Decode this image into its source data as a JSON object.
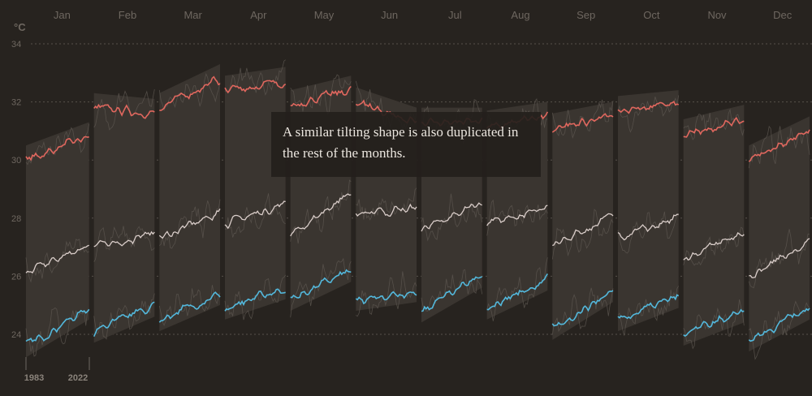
{
  "chart_data": {
    "type": "line",
    "unit_label": "°C",
    "ylim": [
      23,
      35
    ],
    "y_ticks": [
      24,
      26,
      28,
      30,
      32,
      34
    ],
    "grid": true,
    "year_start_label": "1983",
    "year_end_label": "2022",
    "annotation": "A similar tilting shape is also duplicated in the rest of the months.",
    "months": [
      {
        "label": "Jan",
        "max": [
          30.0,
          30.8
        ],
        "mean": [
          26.1,
          27.1
        ],
        "min": [
          23.6,
          24.9
        ]
      },
      {
        "label": "Feb",
        "max": [
          31.8,
          31.6
        ],
        "mean": [
          27.0,
          27.5
        ],
        "min": [
          24.1,
          25.0
        ]
      },
      {
        "label": "Mar",
        "max": [
          31.8,
          32.8
        ],
        "mean": [
          27.3,
          28.2
        ],
        "min": [
          24.5,
          25.4
        ]
      },
      {
        "label": "Apr",
        "max": [
          32.4,
          32.7
        ],
        "mean": [
          27.8,
          28.5
        ],
        "min": [
          24.9,
          25.6
        ]
      },
      {
        "label": "May",
        "max": [
          31.9,
          32.4
        ],
        "mean": [
          27.4,
          28.9
        ],
        "min": [
          25.2,
          26.2
        ]
      },
      {
        "label": "Jun",
        "max": [
          32.0,
          31.3
        ],
        "mean": [
          28.1,
          28.3
        ],
        "min": [
          25.2,
          25.5
        ]
      },
      {
        "label": "Jul",
        "max": [
          31.3,
          31.3
        ],
        "mean": [
          27.6,
          28.5
        ],
        "min": [
          24.8,
          26.0
        ]
      },
      {
        "label": "Aug",
        "max": [
          31.2,
          31.5
        ],
        "mean": [
          27.8,
          28.3
        ],
        "min": [
          24.9,
          25.9
        ]
      },
      {
        "label": "Sep",
        "max": [
          31.1,
          31.5
        ],
        "mean": [
          27.0,
          28.1
        ],
        "min": [
          24.2,
          25.5
        ]
      },
      {
        "label": "Oct",
        "max": [
          31.7,
          31.9
        ],
        "mean": [
          27.3,
          28.0
        ],
        "min": [
          24.5,
          25.3
        ]
      },
      {
        "label": "Nov",
        "max": [
          30.9,
          31.4
        ],
        "mean": [
          26.6,
          27.5
        ],
        "min": [
          24.0,
          24.8
        ]
      },
      {
        "label": "Dec",
        "max": [
          30.0,
          31.0
        ],
        "mean": [
          26.0,
          27.2
        ],
        "min": [
          23.8,
          24.9
        ]
      }
    ],
    "colors": {
      "max": "#e0675e",
      "mean": "#d9cdc9",
      "min": "#53b8dc",
      "band": "#3a3530",
      "noise": "#5c5650",
      "grid": "#57514b",
      "background": "#27231f"
    }
  }
}
